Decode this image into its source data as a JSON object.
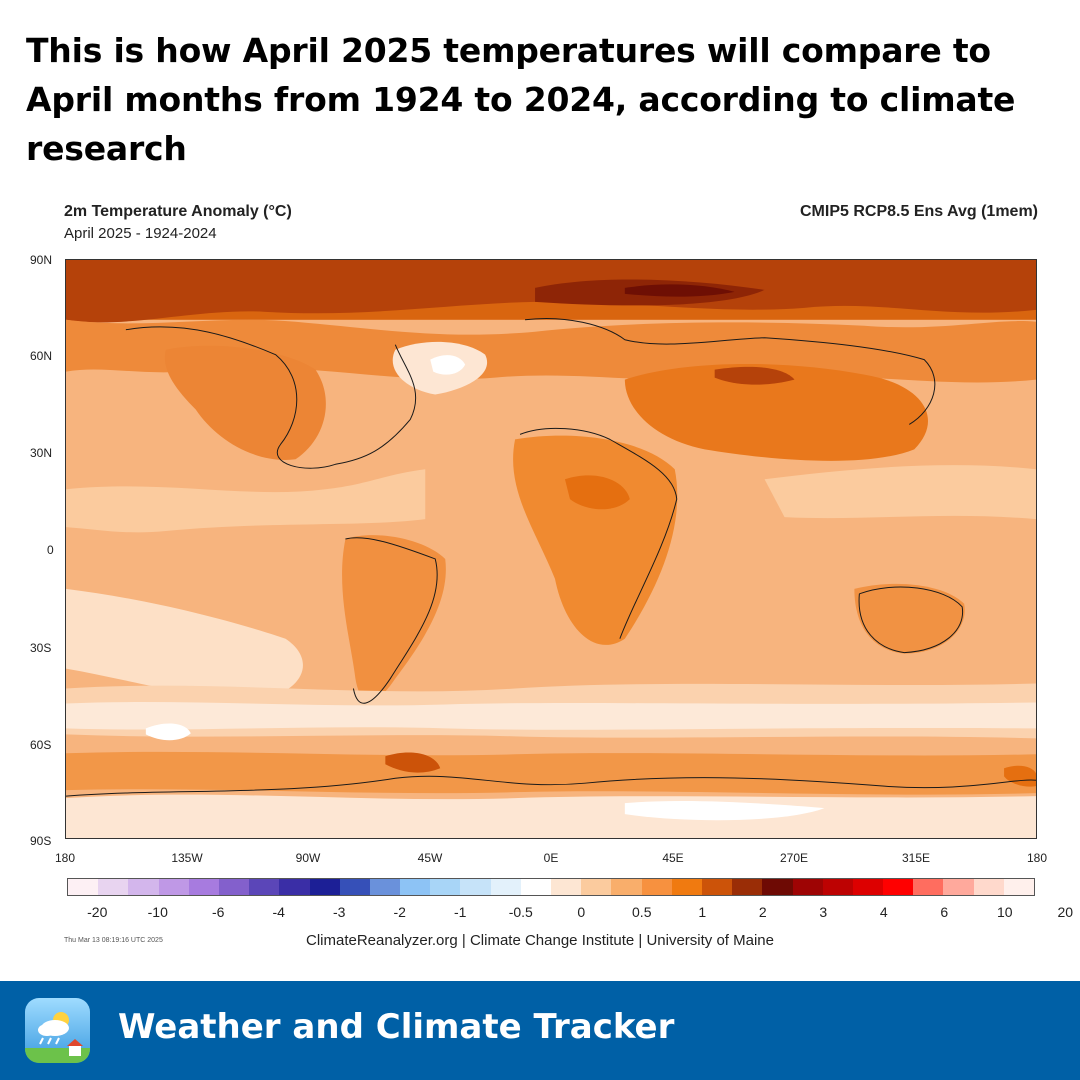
{
  "headline": "This is how April 2025 temperatures will compare to April months from 1924 to 2024, according to climate research",
  "map": {
    "title": "2m Temperature Anomaly (°C)",
    "subtitle": "April 2025 - 1924-2024",
    "model": "CMIP5 RCP8.5 Ens Avg (1mem)",
    "lat_labels": [
      "90N",
      "60N",
      "30N",
      "0",
      "30S",
      "60S",
      "90S"
    ],
    "lon_labels": [
      "180",
      "135W",
      "90W",
      "45W",
      "0E",
      "45E",
      "270E",
      "315E",
      "180"
    ],
    "colorbar": {
      "colors": [
        "#fdf0f4",
        "#e8d4f0",
        "#d3b6ec",
        "#bf98e6",
        "#a77bdf",
        "#8360cc",
        "#5b46b8",
        "#3a2ea6",
        "#1c1f96",
        "#3650b8",
        "#6a91db",
        "#8dc3f5",
        "#a8d5f7",
        "#c6e3f9",
        "#e3f1fb",
        "#ffffff",
        "#fde6d3",
        "#fbcb9e",
        "#f9ae6b",
        "#f7913f",
        "#f07a10",
        "#cc5309",
        "#9a2d06",
        "#6e0a04",
        "#9e0404",
        "#bd0202",
        "#dd0000",
        "#ff0000",
        "#ff6d5f",
        "#ffa99c",
        "#ffd9cc",
        "#fff0ec"
      ],
      "tick_labels": [
        "-20",
        "-10",
        "-6",
        "-4",
        "-3",
        "-2",
        "-1",
        "-0.5",
        "0",
        "0.5",
        "1",
        "2",
        "3",
        "4",
        "6",
        "10",
        "20"
      ]
    },
    "timestamp": "Thu Mar 13 08:19:16 UTC 2025",
    "credit": "ClimateReanalyzer.org | Climate Change Institute | University of Maine"
  },
  "footer": {
    "title": "Weather and Climate Tracker",
    "icon": "weather-app-icon"
  }
}
